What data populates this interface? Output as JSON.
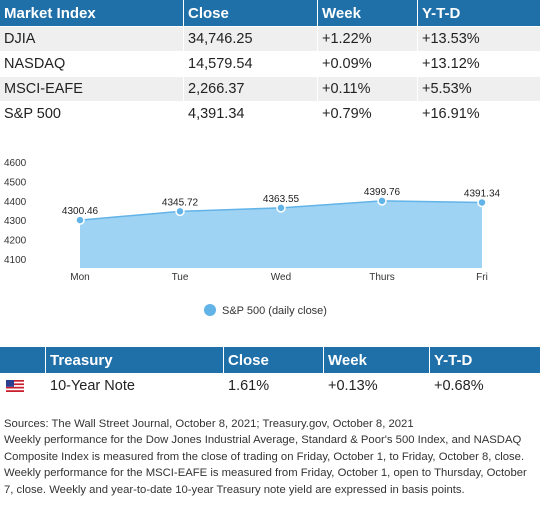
{
  "market": {
    "headers": [
      "Market Index",
      "Close",
      "Week",
      "Y-T-D"
    ],
    "rows": [
      [
        "DJIA",
        "34,746.25",
        "+1.22%",
        "+13.53%"
      ],
      [
        "NASDAQ",
        "14,579.54",
        "+0.09%",
        "+13.12%"
      ],
      [
        "MSCI-EAFE",
        "2,266.37",
        "+0.11%",
        "+5.53%"
      ],
      [
        "S&P 500",
        "4,391.34",
        "+0.79%",
        "+16.91%"
      ]
    ]
  },
  "chart_data": {
    "type": "area",
    "categories": [
      "Mon",
      "Tue",
      "Wed",
      "Thurs",
      "Fri"
    ],
    "series": [
      {
        "name": "S&P 500 (daily close)",
        "values": [
          4300.46,
          4345.72,
          4363.55,
          4399.76,
          4391.34
        ],
        "labels": [
          "4300.46",
          "4345.72",
          "4363.55",
          "4399.76",
          "4391.34"
        ]
      }
    ],
    "yticks": [
      "4600",
      "4500",
      "4400",
      "4300",
      "4200",
      "4100"
    ],
    "ylim": [
      4100,
      4600
    ],
    "legend": "bottom",
    "grid": false,
    "colors": {
      "fill": "#9fd3f3",
      "line": "#61b3e8",
      "marker": "#61b3e8"
    }
  },
  "treasury": {
    "headers": [
      "",
      "Treasury",
      "Close",
      "Week",
      "Y-T-D"
    ],
    "row": {
      "flag_icon": "us-flag-icon",
      "name": "10-Year Note",
      "close": "1.61%",
      "week": "+0.13%",
      "ytd": "+0.68%"
    }
  },
  "notes": [
    "Sources: The Wall Street Journal, October 8, 2021; Treasury.gov, October 8, 2021",
    "Weekly performance for the Dow Jones Industrial Average, Standard & Poor's 500 Index, and NASDAQ Composite Index is measured from the close of trading on Friday, October 1, to Friday, October 8, close. Weekly performance for the MSCI-EAFE is measured from Friday, October 1, open to Thursday, October 7, close. Weekly and year-to-date 10-year Treasury note yield are expressed in basis points."
  ],
  "colors": {
    "header_bg": "#1f6fa8",
    "stripe": "#efefef"
  }
}
